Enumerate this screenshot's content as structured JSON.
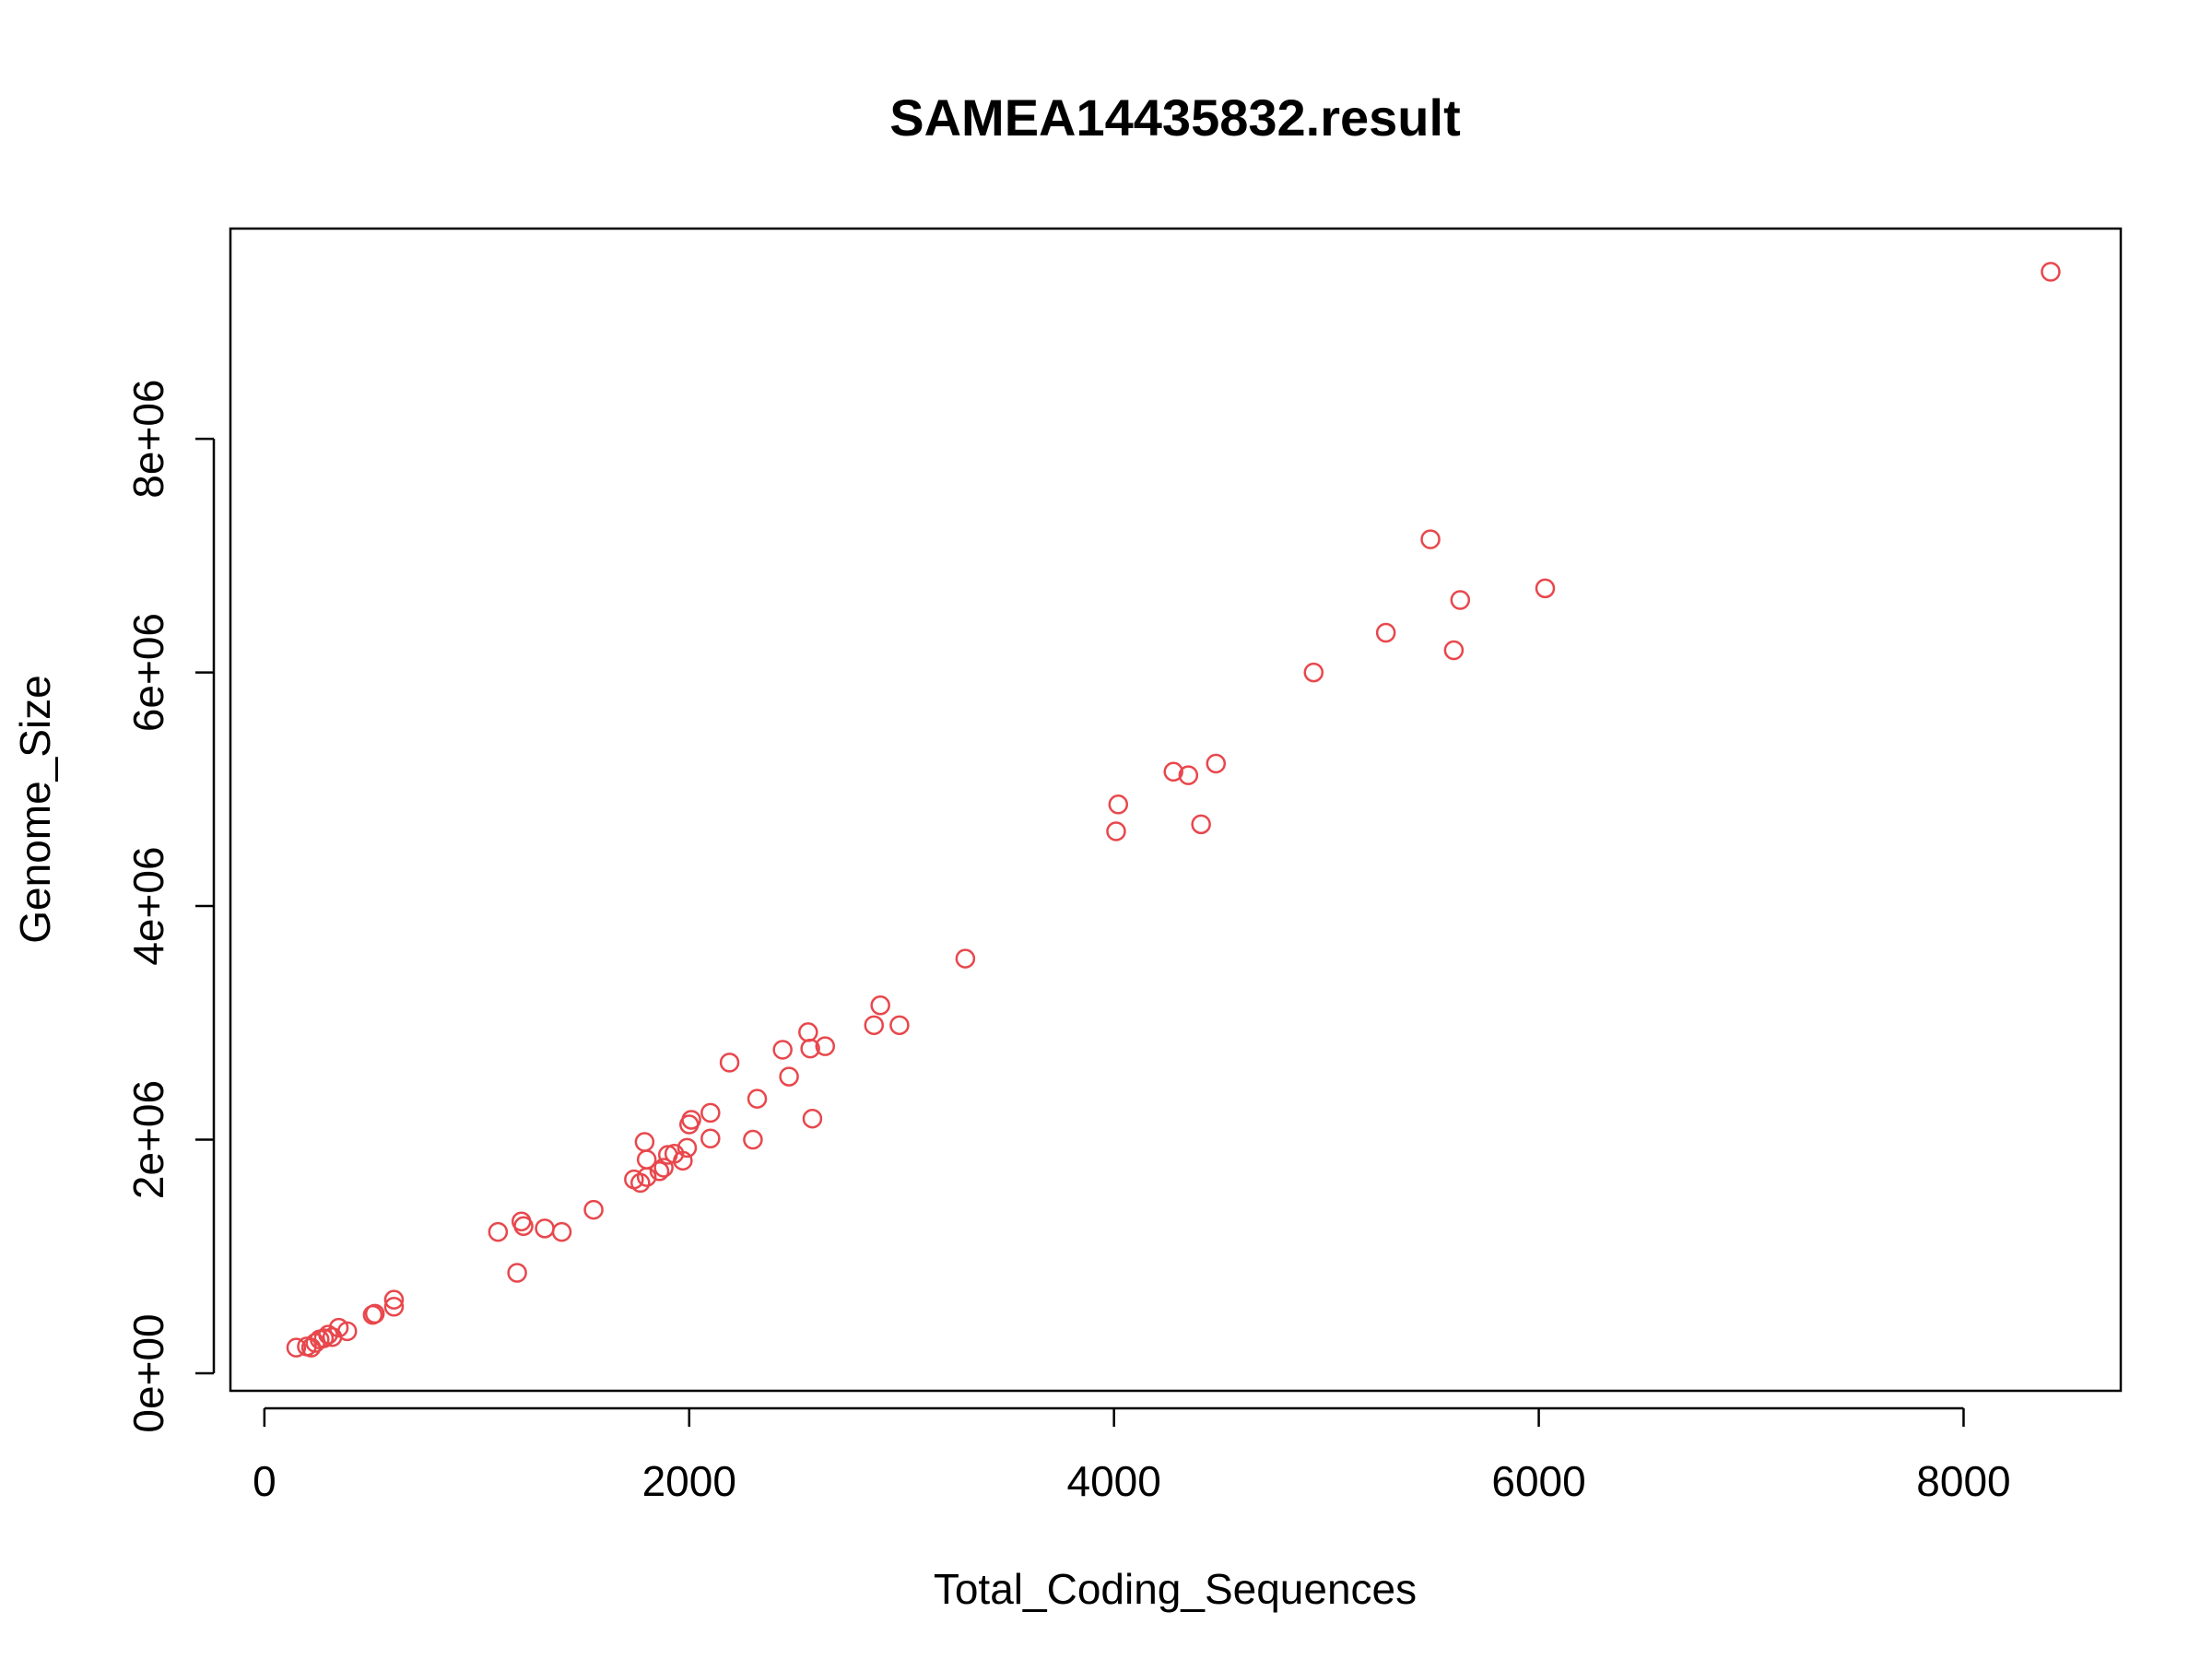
{
  "chart_data": {
    "type": "scatter",
    "title": "SAMEA14435832.result",
    "xlabel": "Total_Coding_Sequences",
    "ylabel": "Genome_Size",
    "xlim": [
      -160,
      8740
    ],
    "ylim": [
      -150000,
      9800000
    ],
    "x_ticks": [
      0,
      2000,
      4000,
      6000,
      8000
    ],
    "x_tick_labels": [
      "0",
      "2000",
      "4000",
      "6000",
      "8000"
    ],
    "y_ticks": [
      0,
      2000000,
      4000000,
      6000000,
      8000000
    ],
    "y_tick_labels": [
      "0e+00",
      "2e+06",
      "4e+06",
      "6e+06",
      "8e+06"
    ],
    "grid": false,
    "legend": "none",
    "marker": "open-circle",
    "point_color": "#e8474c",
    "series": [
      {
        "points": [
          [
            150,
            220000
          ],
          [
            200,
            230000
          ],
          [
            220,
            220000
          ],
          [
            240,
            260000
          ],
          [
            260,
            290000
          ],
          [
            280,
            300000
          ],
          [
            300,
            330000
          ],
          [
            320,
            310000
          ],
          [
            350,
            390000
          ],
          [
            390,
            360000
          ],
          [
            510,
            500000
          ],
          [
            520,
            510000
          ],
          [
            610,
            570000
          ],
          [
            610,
            630000
          ],
          [
            1100,
            1210000
          ],
          [
            1190,
            860000
          ],
          [
            1210,
            1300000
          ],
          [
            1220,
            1260000
          ],
          [
            1320,
            1240000
          ],
          [
            1400,
            1210000
          ],
          [
            1550,
            1400000
          ],
          [
            1740,
            1660000
          ],
          [
            1770,
            1630000
          ],
          [
            1790,
            1980000
          ],
          [
            1800,
            1680000
          ],
          [
            1800,
            1830000
          ],
          [
            1860,
            1730000
          ],
          [
            1880,
            1760000
          ],
          [
            1900,
            1870000
          ],
          [
            1930,
            1880000
          ],
          [
            1970,
            1820000
          ],
          [
            1990,
            1930000
          ],
          [
            2000,
            2130000
          ],
          [
            2010,
            2170000
          ],
          [
            2100,
            2010000
          ],
          [
            2100,
            2230000
          ],
          [
            2190,
            2660000
          ],
          [
            2300,
            2000000
          ],
          [
            2320,
            2350000
          ],
          [
            2440,
            2770000
          ],
          [
            2470,
            2540000
          ],
          [
            2560,
            2920000
          ],
          [
            2570,
            2780000
          ],
          [
            2580,
            2180000
          ],
          [
            2640,
            2800000
          ],
          [
            2870,
            2980000
          ],
          [
            2900,
            3150000
          ],
          [
            2990,
            2980000
          ],
          [
            3300,
            3550000
          ],
          [
            4010,
            4640000
          ],
          [
            4020,
            4870000
          ],
          [
            4280,
            5150000
          ],
          [
            4350,
            5120000
          ],
          [
            4410,
            4700000
          ],
          [
            4480,
            5220000
          ],
          [
            4940,
            6000000
          ],
          [
            5280,
            6340000
          ],
          [
            5490,
            7140000
          ],
          [
            5600,
            6190000
          ],
          [
            5630,
            6620000
          ],
          [
            6030,
            6720000
          ],
          [
            8410,
            9430000
          ]
        ]
      }
    ]
  }
}
